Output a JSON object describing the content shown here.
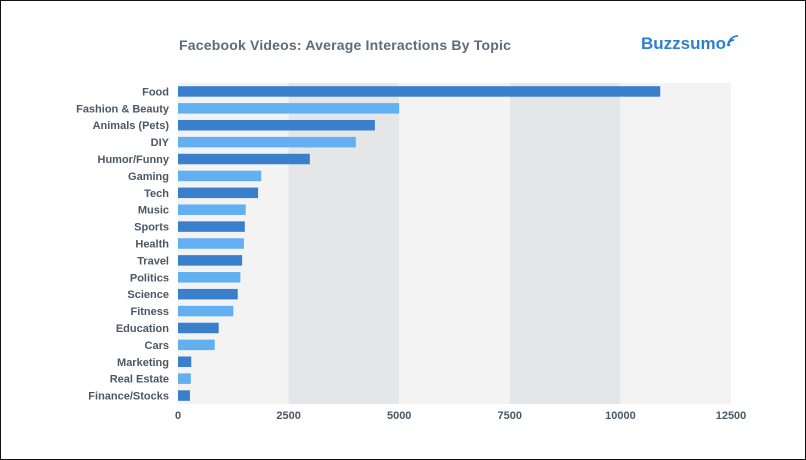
{
  "header": {
    "title": "Facebook Videos: Average Interactions By Topic",
    "brand": "Buzzsumo"
  },
  "colors": {
    "bar_dark": "#3a7fcb",
    "bar_light": "#62b0f2",
    "band_light": "#f3f3f4",
    "band_dark": "#e5e6e8",
    "title": "#5d6b7a",
    "brand": "#2f7fd0"
  },
  "chart_data": {
    "type": "bar",
    "orientation": "horizontal",
    "title": "Facebook Videos: Average Interactions By Topic",
    "xlabel": "",
    "ylabel": "",
    "xlim": [
      0,
      12500
    ],
    "xticks": [
      0,
      2500,
      5000,
      7500,
      10000,
      12500
    ],
    "grid": "alternating vertical bands",
    "categories": [
      "Food",
      "Fashion & Beauty",
      "Animals (Pets)",
      "DIY",
      "Humor/Funny",
      "Gaming",
      "Tech",
      "Music",
      "Sports",
      "Health",
      "Travel",
      "Politics",
      "Science",
      "Fitness",
      "Education",
      "Cars",
      "Marketing",
      "Real Estate",
      "Finance/Stocks"
    ],
    "values": [
      10900,
      5000,
      4450,
      4020,
      2980,
      1880,
      1810,
      1530,
      1510,
      1490,
      1450,
      1410,
      1350,
      1250,
      920,
      830,
      300,
      290,
      270
    ]
  }
}
